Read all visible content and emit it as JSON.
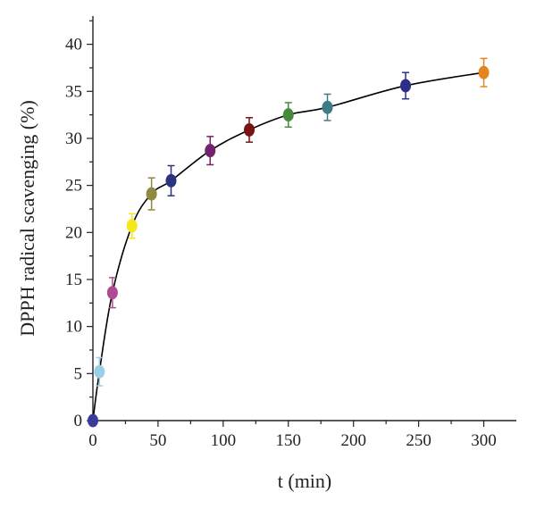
{
  "chart_data": {
    "type": "scatter",
    "xlabel": "t (min)",
    "ylabel": "DPPH radical scavenging (%)",
    "xlim": [
      0,
      325
    ],
    "ylim": [
      0,
      43
    ],
    "x_ticks": [
      0,
      50,
      100,
      150,
      200,
      250,
      300
    ],
    "y_ticks": [
      0,
      5,
      10,
      15,
      20,
      25,
      30,
      35,
      40
    ],
    "grid": false,
    "legend": "none",
    "fit_curve": true,
    "points": [
      {
        "x": 0,
        "y": 0,
        "err": 0,
        "color": "#3b3b9a"
      },
      {
        "x": 5,
        "y": 5.2,
        "err": 1.5,
        "color": "#9ccfe6"
      },
      {
        "x": 15,
        "y": 13.6,
        "err": 1.6,
        "color": "#b04a94"
      },
      {
        "x": 30,
        "y": 20.7,
        "err": 1.3,
        "color": "#f2e81c"
      },
      {
        "x": 45,
        "y": 24.1,
        "err": 1.7,
        "color": "#8e8a3e"
      },
      {
        "x": 60,
        "y": 25.5,
        "err": 1.6,
        "color": "#2c3481"
      },
      {
        "x": 90,
        "y": 28.7,
        "err": 1.5,
        "color": "#74226e"
      },
      {
        "x": 120,
        "y": 30.9,
        "err": 1.3,
        "color": "#7a1414"
      },
      {
        "x": 150,
        "y": 32.5,
        "err": 1.3,
        "color": "#468b3c"
      },
      {
        "x": 180,
        "y": 33.3,
        "err": 1.4,
        "color": "#3e7d85"
      },
      {
        "x": 240,
        "y": 35.6,
        "err": 1.4,
        "color": "#2b2f87"
      },
      {
        "x": 300,
        "y": 37.0,
        "err": 1.5,
        "color": "#e38521"
      }
    ]
  }
}
